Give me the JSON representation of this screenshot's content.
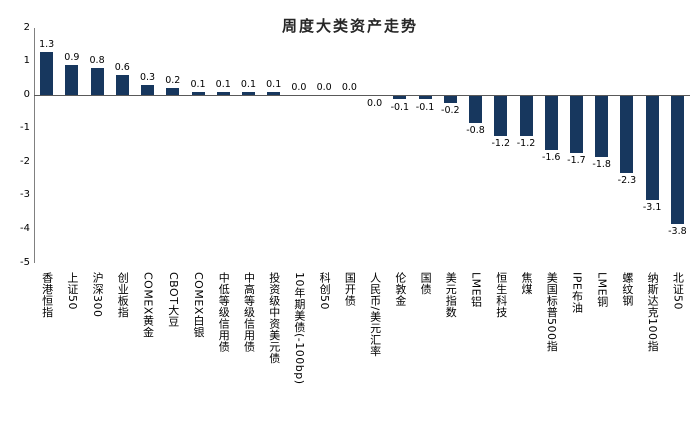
{
  "chart_data": {
    "type": "bar",
    "title": "周度大类资产走势",
    "categories": [
      "香港恒指",
      "上证50",
      "沪深300",
      "创业板指",
      "COMEX黄金",
      "CBOT大豆",
      "COMEX白银",
      "中低等级信用债",
      "中高等级信用债",
      "投资级中资美元债",
      "10年期美债(-100bp)",
      "科创50",
      "国开债",
      "人民币/美元汇率",
      "伦敦金",
      "国债",
      "美元指数",
      "LME铝",
      "恒生科技",
      "焦煤",
      "美国标普500指",
      "IPE布油",
      "LME铜",
      "螺纹钢",
      "纳斯达克100指",
      "北证50"
    ],
    "values": [
      1.3,
      0.9,
      0.8,
      0.6,
      0.3,
      0.2,
      0.1,
      0.1,
      0.1,
      0.1,
      0.0,
      0.0,
      0.0,
      0.0,
      -0.1,
      -0.1,
      -0.2,
      -0.8,
      -1.2,
      -1.2,
      -1.6,
      -1.7,
      -1.8,
      -2.3,
      -3.1,
      -3.8
    ],
    "value_labels": [
      "1.3",
      "0.9",
      "0.8",
      "0.6",
      "0.3",
      "0.2",
      "0.1",
      "0.1",
      "0.1",
      "0.1",
      "0.0",
      "0.0",
      "0.0",
      "0.0",
      "-0.1",
      "-0.1",
      "-0.2",
      "-0.8",
      "-1.2",
      "-1.2",
      "-1.6",
      "-1.7",
      "-1.8",
      "-2.3",
      "-3.1",
      "-3.8"
    ],
    "label_below_indices": [
      13
    ],
    "yticks": [
      2,
      1,
      0,
      -1,
      -2,
      -3,
      -4,
      -5
    ],
    "ylim": [
      -5,
      2
    ],
    "xlabel": "",
    "ylabel": "",
    "bar_color": "#17375e",
    "axis_color": "#808080",
    "zero_line_color": "#595959",
    "grid": false,
    "legend": false
  }
}
